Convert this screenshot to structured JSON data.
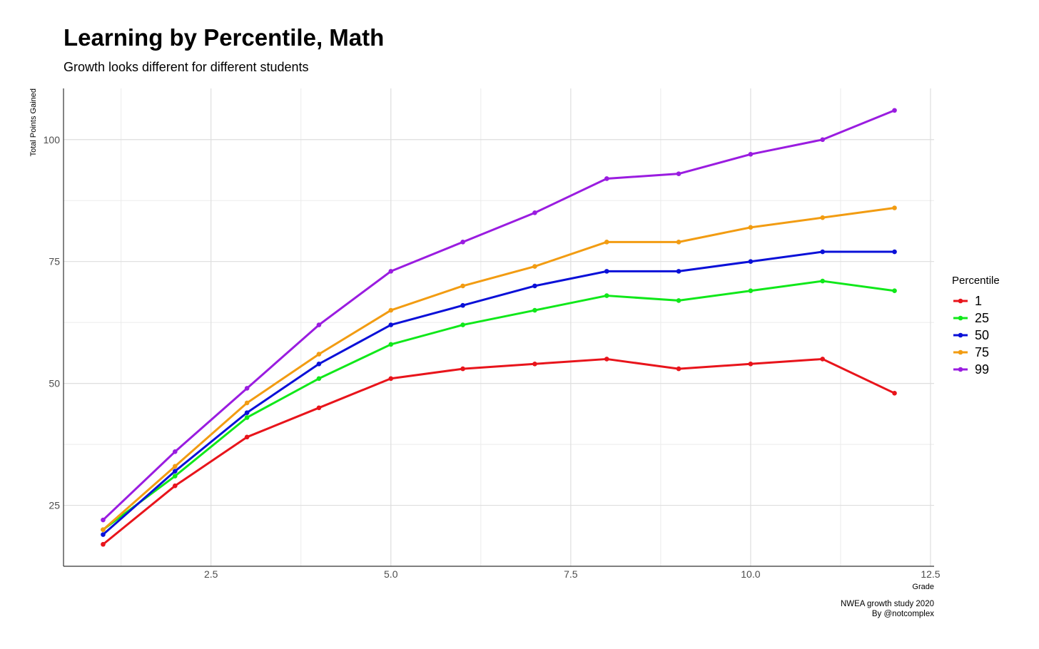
{
  "title": "Learning by Percentile, Math",
  "subtitle": "Growth looks different for different students",
  "caption": {
    "line1": "NWEA growth study 2020",
    "line2": "By @notcomplex"
  },
  "chart_data": {
    "type": "line",
    "title": "Learning by Percentile, Math",
    "subtitle": "Growth looks different for different students",
    "xlabel": "Grade",
    "ylabel": "Total Points Gained",
    "x": [
      1,
      2,
      3,
      4,
      5,
      6,
      7,
      8,
      9,
      10,
      11,
      12
    ],
    "xlim": [
      0.45,
      12.55
    ],
    "ylim": [
      12.5,
      110.5
    ],
    "x_ticks": [
      2.5,
      5.0,
      7.5,
      10.0,
      12.5
    ],
    "x_tick_labels": [
      "2.5",
      "5.0",
      "7.5",
      "10.0",
      "12.5"
    ],
    "y_ticks": [
      25,
      50,
      75,
      100
    ],
    "y_tick_labels": [
      "25",
      "50",
      "75",
      "100"
    ],
    "grid": true,
    "markers": true,
    "legend_title": "Percentile",
    "legend_position": "right",
    "series": [
      {
        "name": "1",
        "color": "#e8141b",
        "values": [
          17,
          29,
          39,
          45,
          51,
          53,
          54,
          55,
          53,
          54,
          55,
          48
        ]
      },
      {
        "name": "25",
        "color": "#10e81a",
        "values": [
          20,
          31,
          43,
          51,
          58,
          62,
          65,
          68,
          67,
          69,
          71,
          69
        ]
      },
      {
        "name": "50",
        "color": "#0a10d8",
        "values": [
          19,
          32,
          44,
          54,
          62,
          66,
          70,
          73,
          73,
          75,
          77,
          77
        ]
      },
      {
        "name": "75",
        "color": "#f29c12",
        "values": [
          20,
          33,
          46,
          56,
          65,
          70,
          74,
          79,
          79,
          82,
          84,
          86
        ]
      },
      {
        "name": "99",
        "color": "#9a1ce0",
        "values": [
          22,
          36,
          49,
          62,
          73,
          79,
          85,
          92,
          93,
          97,
          100,
          106
        ]
      }
    ]
  }
}
